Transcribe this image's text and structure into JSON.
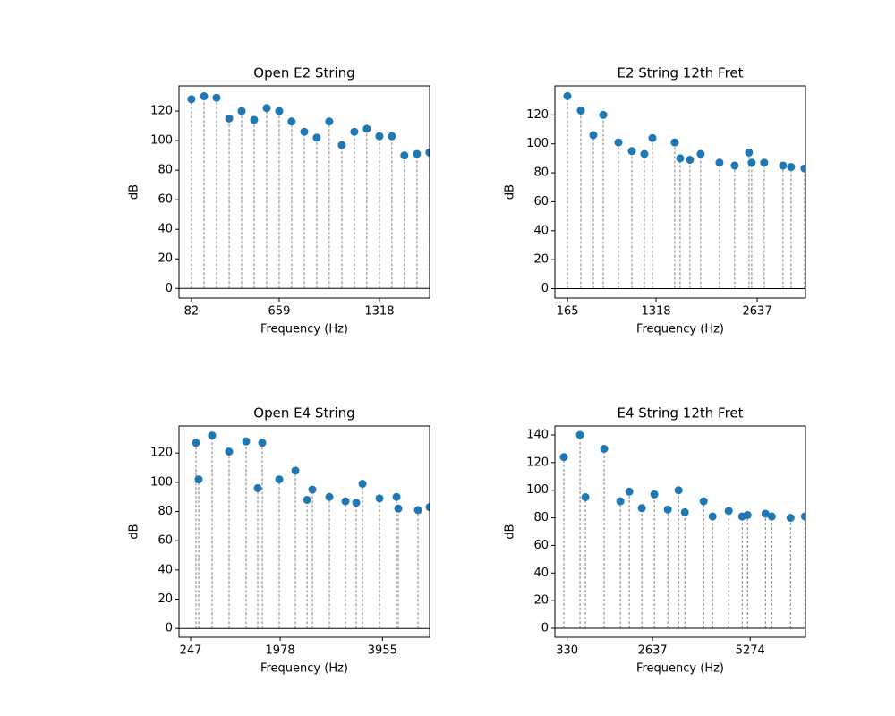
{
  "chart_data": [
    {
      "type": "stem",
      "title": "Open E2 String",
      "x_label": "Frequency (Hz)",
      "y_label": "dB",
      "color": "#1f77b4",
      "x": [
        82,
        165,
        247,
        330,
        412,
        494,
        577,
        659,
        741,
        824,
        906,
        988,
        1071,
        1153,
        1235,
        1318,
        1400,
        1482,
        1565,
        1647
      ],
      "values": [
        128,
        130,
        129,
        115,
        120,
        114,
        122,
        120,
        113,
        106,
        102,
        113,
        97,
        106,
        108,
        103,
        103,
        90,
        91,
        92
      ],
      "xlim": [
        0,
        1648
      ],
      "xticks": [
        82,
        659,
        1318
      ],
      "ylim": [
        -6.5,
        137
      ],
      "yticks": [
        0,
        20,
        40,
        60,
        80,
        100,
        120
      ]
    },
    {
      "type": "stem",
      "title": "E2 String 12th Fret",
      "x_label": "Frequency (Hz)",
      "y_label": "dB",
      "color": "#1f77b4",
      "x": [
        163,
        338,
        501,
        630,
        828,
        1003,
        1166,
        1271,
        1562,
        1632,
        1760,
        1900,
        2145,
        2343,
        2530,
        2565,
        2728,
        2973,
        3078,
        3253
      ],
      "values": [
        133,
        123,
        106,
        120,
        101,
        95,
        93,
        104,
        101,
        90,
        89,
        93,
        87,
        85,
        94,
        87,
        87,
        85,
        84,
        83
      ],
      "xlim": [
        0,
        3266
      ],
      "xticks": [
        165,
        1318,
        2637
      ],
      "ylim": [
        -6.5,
        140
      ],
      "yticks": [
        0,
        20,
        40,
        60,
        80,
        100,
        120
      ]
    },
    {
      "type": "stem",
      "title": "Open E4 String",
      "x_label": "Frequency (Hz)",
      "y_label": "dB",
      "color": "#1f77b4",
      "x": [
        351,
        403,
        662,
        991,
        1320,
        1545,
        1631,
        1960,
        2272,
        2497,
        2600,
        2929,
        3240,
        3448,
        3569,
        3898,
        4227,
        4261,
        4642,
        4866
      ],
      "values": [
        127,
        102,
        132,
        121,
        128,
        96,
        127,
        102,
        108,
        88,
        95,
        90,
        87,
        86,
        99,
        89,
        90,
        82,
        81,
        83
      ],
      "xlim": [
        22,
        4866
      ],
      "xticks": [
        247,
        1978,
        3955
      ],
      "ylim": [
        -6,
        138.5
      ],
      "yticks": [
        0,
        20,
        40,
        60,
        80,
        100,
        120
      ]
    },
    {
      "type": "stem",
      "title": "E4 String 12th Fret",
      "x_label": "Frequency (Hz)",
      "y_label": "dB",
      "color": "#1f77b4",
      "x": [
        242,
        678,
        823,
        1331,
        1767,
        2009,
        2347,
        2686,
        3049,
        3340,
        3509,
        4017,
        4259,
        4694,
        5058,
        5203,
        5687,
        5856,
        6364,
        6752
      ],
      "values": [
        124,
        140,
        95,
        130,
        92,
        99,
        87,
        97,
        86,
        100,
        84,
        92,
        81,
        85,
        81,
        82,
        83,
        81,
        80,
        81
      ],
      "xlim": [
        0,
        6767
      ],
      "xticks": [
        330,
        2637,
        5274
      ],
      "ylim": [
        -6.5,
        146.5
      ],
      "yticks": [
        0,
        20,
        40,
        60,
        80,
        100,
        120,
        140
      ]
    }
  ]
}
